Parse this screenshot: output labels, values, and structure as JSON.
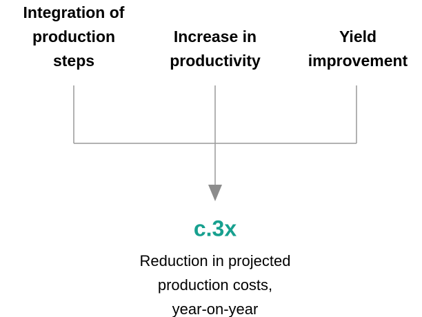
{
  "inputs": [
    {
      "lines": [
        "Integration of",
        "production",
        "steps"
      ]
    },
    {
      "lines": [
        "Increase in",
        "productivity"
      ]
    },
    {
      "lines": [
        "Yield",
        "improvement"
      ]
    }
  ],
  "result": {
    "value": "c.3x",
    "lines": [
      "Reduction in projected",
      "production costs,",
      "year-on-year"
    ]
  }
}
